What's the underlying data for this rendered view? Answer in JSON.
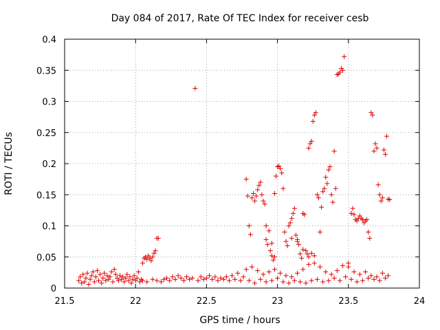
{
  "chart_data": {
    "type": "scatter",
    "title": "Day 084 of 2017, Rate Of TEC Index for receiver cesb",
    "xlabel": "GPS time / hours",
    "ylabel": "ROTI / TECUs",
    "xlim": [
      21.5,
      24
    ],
    "ylim": [
      0,
      0.4
    ],
    "x_ticks": [
      21.5,
      22,
      22.5,
      23,
      23.5,
      24
    ],
    "x_tick_labels": [
      "21.5",
      "22",
      "22.5",
      "23",
      "23.5",
      "24"
    ],
    "y_ticks": [
      0,
      0.05,
      0.1,
      0.15,
      0.2,
      0.25,
      0.3,
      0.35,
      0.4
    ],
    "y_tick_labels": [
      "0",
      "0.05",
      "0.1",
      "0.15",
      "0.2",
      "0.25",
      "0.3",
      "0.35",
      "0.4"
    ],
    "grid": true,
    "marker": "+",
    "marker_color": "#dd0000",
    "series": [
      {
        "name": "ROTI",
        "points": [
          [
            21.6,
            0.012
          ],
          [
            21.61,
            0.018
          ],
          [
            21.62,
            0.008
          ],
          [
            21.63,
            0.022
          ],
          [
            21.64,
            0.01
          ],
          [
            21.65,
            0.016
          ],
          [
            21.66,
            0.024
          ],
          [
            21.67,
            0.006
          ],
          [
            21.68,
            0.014
          ],
          [
            21.69,
            0.02
          ],
          [
            21.7,
            0.026
          ],
          [
            21.71,
            0.01
          ],
          [
            21.72,
            0.018
          ],
          [
            21.73,
            0.028
          ],
          [
            21.74,
            0.012
          ],
          [
            21.75,
            0.022
          ],
          [
            21.76,
            0.008
          ],
          [
            21.77,
            0.016
          ],
          [
            21.78,
            0.024
          ],
          [
            21.79,
            0.012
          ],
          [
            21.8,
            0.02
          ],
          [
            21.81,
            0.014
          ],
          [
            21.82,
            0.018
          ],
          [
            21.83,
            0.026
          ],
          [
            21.84,
            0.01
          ],
          [
            21.85,
            0.03
          ],
          [
            21.86,
            0.022
          ],
          [
            21.87,
            0.016
          ],
          [
            21.88,
            0.012
          ],
          [
            21.89,
            0.02
          ],
          [
            21.9,
            0.014
          ],
          [
            21.91,
            0.018
          ],
          [
            21.92,
            0.01
          ],
          [
            21.93,
            0.016
          ],
          [
            21.94,
            0.022
          ],
          [
            21.95,
            0.012
          ],
          [
            21.96,
            0.018
          ],
          [
            21.97,
            0.008
          ],
          [
            21.98,
            0.014
          ],
          [
            21.99,
            0.02
          ],
          [
            22.0,
            0.012
          ],
          [
            22.01,
            0.016
          ],
          [
            22.02,
            0.026
          ],
          [
            22.03,
            0.01
          ],
          [
            22.04,
            0.014
          ],
          [
            22.05,
            0.04
          ],
          [
            22.06,
            0.048
          ],
          [
            22.07,
            0.05
          ],
          [
            22.08,
            0.046
          ],
          [
            22.09,
            0.052
          ],
          [
            22.1,
            0.048
          ],
          [
            22.11,
            0.044
          ],
          [
            22.12,
            0.05
          ],
          [
            22.13,
            0.056
          ],
          [
            22.14,
            0.06
          ],
          [
            22.15,
            0.08
          ],
          [
            22.16,
            0.08
          ],
          [
            22.05,
            0.012
          ],
          [
            22.08,
            0.01
          ],
          [
            22.12,
            0.014
          ],
          [
            22.15,
            0.012
          ],
          [
            22.18,
            0.01
          ],
          [
            22.2,
            0.014
          ],
          [
            22.22,
            0.016
          ],
          [
            22.24,
            0.012
          ],
          [
            22.26,
            0.018
          ],
          [
            22.28,
            0.014
          ],
          [
            22.3,
            0.02
          ],
          [
            22.32,
            0.016
          ],
          [
            22.34,
            0.012
          ],
          [
            22.36,
            0.018
          ],
          [
            22.38,
            0.014
          ],
          [
            22.4,
            0.016
          ],
          [
            22.42,
            0.321
          ],
          [
            22.44,
            0.012
          ],
          [
            22.46,
            0.018
          ],
          [
            22.48,
            0.014
          ],
          [
            22.5,
            0.016
          ],
          [
            22.52,
            0.02
          ],
          [
            22.54,
            0.014
          ],
          [
            22.56,
            0.018
          ],
          [
            22.58,
            0.012
          ],
          [
            22.6,
            0.016
          ],
          [
            22.62,
            0.014
          ],
          [
            22.64,
            0.018
          ],
          [
            22.66,
            0.012
          ],
          [
            22.68,
            0.02
          ],
          [
            22.7,
            0.014
          ],
          [
            22.72,
            0.024
          ],
          [
            22.74,
            0.012
          ],
          [
            22.76,
            0.018
          ],
          [
            22.78,
            0.175
          ],
          [
            22.79,
            0.148
          ],
          [
            22.8,
            0.1
          ],
          [
            22.81,
            0.086
          ],
          [
            22.82,
            0.145
          ],
          [
            22.83,
            0.152
          ],
          [
            22.84,
            0.14
          ],
          [
            22.85,
            0.148
          ],
          [
            22.86,
            0.158
          ],
          [
            22.87,
            0.165
          ],
          [
            22.88,
            0.17
          ],
          [
            22.89,
            0.15
          ],
          [
            22.9,
            0.14
          ],
          [
            22.91,
            0.135
          ],
          [
            22.92,
            0.1
          ],
          [
            22.93,
            0.07
          ],
          [
            22.94,
            0.092
          ],
          [
            22.95,
            0.06
          ],
          [
            22.96,
            0.052
          ],
          [
            22.97,
            0.045
          ],
          [
            22.98,
            0.152
          ],
          [
            22.99,
            0.18
          ],
          [
            23.0,
            0.195
          ],
          [
            23.01,
            0.196
          ],
          [
            23.02,
            0.192
          ],
          [
            23.03,
            0.185
          ],
          [
            23.04,
            0.16
          ],
          [
            23.05,
            0.09
          ],
          [
            23.06,
            0.075
          ],
          [
            23.07,
            0.068
          ],
          [
            23.08,
            0.1
          ],
          [
            23.09,
            0.105
          ],
          [
            23.1,
            0.112
          ],
          [
            23.11,
            0.12
          ],
          [
            23.12,
            0.128
          ],
          [
            23.13,
            0.085
          ],
          [
            23.14,
            0.078
          ],
          [
            23.15,
            0.07
          ],
          [
            23.16,
            0.055
          ],
          [
            23.17,
            0.048
          ],
          [
            23.18,
            0.12
          ],
          [
            23.19,
            0.118
          ],
          [
            23.2,
            0.06
          ],
          [
            23.21,
            0.055
          ],
          [
            23.22,
            0.225
          ],
          [
            23.23,
            0.232
          ],
          [
            23.24,
            0.236
          ],
          [
            23.25,
            0.268
          ],
          [
            23.26,
            0.278
          ],
          [
            23.27,
            0.282
          ],
          [
            23.28,
            0.15
          ],
          [
            23.29,
            0.145
          ],
          [
            23.3,
            0.09
          ],
          [
            23.31,
            0.13
          ],
          [
            23.32,
            0.155
          ],
          [
            23.33,
            0.16
          ],
          [
            23.34,
            0.178
          ],
          [
            23.35,
            0.168
          ],
          [
            23.36,
            0.19
          ],
          [
            23.37,
            0.195
          ],
          [
            23.38,
            0.15
          ],
          [
            23.39,
            0.138
          ],
          [
            23.4,
            0.22
          ],
          [
            23.41,
            0.16
          ],
          [
            23.42,
            0.343
          ],
          [
            23.43,
            0.344
          ],
          [
            23.44,
            0.347
          ],
          [
            23.45,
            0.353
          ],
          [
            23.46,
            0.35
          ],
          [
            23.47,
            0.372
          ],
          [
            23.5,
            0.04
          ],
          [
            23.52,
            0.12
          ],
          [
            23.53,
            0.128
          ],
          [
            23.54,
            0.118
          ],
          [
            23.55,
            0.11
          ],
          [
            23.56,
            0.108
          ],
          [
            23.57,
            0.112
          ],
          [
            23.58,
            0.116
          ],
          [
            23.59,
            0.112
          ],
          [
            23.6,
            0.11
          ],
          [
            23.61,
            0.105
          ],
          [
            23.62,
            0.108
          ],
          [
            23.63,
            0.11
          ],
          [
            23.64,
            0.09
          ],
          [
            23.65,
            0.08
          ],
          [
            23.66,
            0.282
          ],
          [
            23.67,
            0.278
          ],
          [
            23.68,
            0.22
          ],
          [
            23.69,
            0.232
          ],
          [
            23.7,
            0.225
          ],
          [
            23.71,
            0.166
          ],
          [
            23.72,
            0.15
          ],
          [
            23.73,
            0.14
          ],
          [
            23.74,
            0.145
          ],
          [
            23.75,
            0.222
          ],
          [
            23.76,
            0.215
          ],
          [
            23.77,
            0.244
          ],
          [
            23.78,
            0.143
          ],
          [
            23.79,
            0.142
          ],
          [
            22.78,
            0.03
          ],
          [
            22.82,
            0.034
          ],
          [
            22.86,
            0.028
          ],
          [
            22.9,
            0.022
          ],
          [
            22.94,
            0.026
          ],
          [
            22.98,
            0.03
          ],
          [
            23.02,
            0.024
          ],
          [
            23.06,
            0.02
          ],
          [
            23.1,
            0.018
          ],
          [
            23.14,
            0.024
          ],
          [
            23.18,
            0.03
          ],
          [
            23.22,
            0.038
          ],
          [
            23.26,
            0.04
          ],
          [
            23.3,
            0.034
          ],
          [
            23.34,
            0.026
          ],
          [
            23.38,
            0.022
          ],
          [
            23.42,
            0.028
          ],
          [
            23.46,
            0.036
          ],
          [
            23.5,
            0.034
          ],
          [
            23.54,
            0.026
          ],
          [
            23.58,
            0.022
          ],
          [
            23.62,
            0.026
          ],
          [
            23.66,
            0.02
          ],
          [
            23.7,
            0.018
          ],
          [
            23.74,
            0.024
          ],
          [
            23.78,
            0.02
          ],
          [
            22.8,
            0.012
          ],
          [
            22.84,
            0.008
          ],
          [
            22.88,
            0.014
          ],
          [
            22.92,
            0.01
          ],
          [
            22.96,
            0.012
          ],
          [
            23.0,
            0.016
          ],
          [
            23.04,
            0.01
          ],
          [
            23.08,
            0.008
          ],
          [
            23.12,
            0.012
          ],
          [
            23.16,
            0.01
          ],
          [
            23.2,
            0.008
          ],
          [
            23.24,
            0.012
          ],
          [
            23.28,
            0.014
          ],
          [
            23.32,
            0.01
          ],
          [
            23.36,
            0.012
          ],
          [
            23.4,
            0.016
          ],
          [
            23.44,
            0.012
          ],
          [
            23.48,
            0.018
          ],
          [
            23.52,
            0.014
          ],
          [
            23.56,
            0.01
          ],
          [
            23.6,
            0.012
          ],
          [
            23.64,
            0.016
          ],
          [
            23.68,
            0.014
          ],
          [
            23.72,
            0.012
          ],
          [
            23.76,
            0.016
          ],
          [
            23.22,
            0.05
          ],
          [
            23.24,
            0.056
          ],
          [
            23.26,
            0.052
          ],
          [
            23.18,
            0.062
          ],
          [
            23.14,
            0.075
          ],
          [
            23.1,
            0.08
          ],
          [
            22.98,
            0.05
          ],
          [
            22.96,
            0.072
          ],
          [
            22.92,
            0.078
          ]
        ]
      }
    ]
  }
}
